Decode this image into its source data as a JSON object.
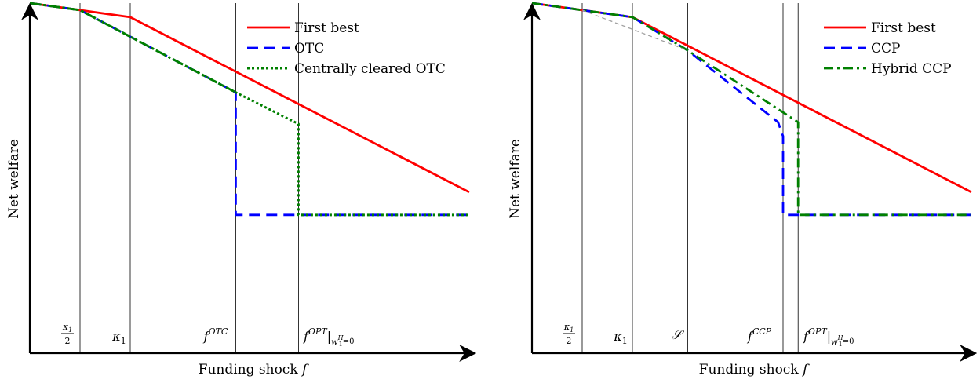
{
  "chart_data": [
    {
      "type": "line",
      "ylabel": "Net welfare",
      "xlabel": "Funding shock f",
      "legend_position": "top-right",
      "grid": false,
      "vlines": [
        {
          "label": "κ1/2",
          "x": 1.0
        },
        {
          "label": "κ1",
          "x": 2.0
        },
        {
          "label": "f^OTC",
          "x": 4.1
        },
        {
          "label": "f^OPT|w1H=0",
          "x": 5.35
        }
      ],
      "xlim": [
        0,
        8.8
      ],
      "ylim": [
        0,
        10
      ],
      "series": [
        {
          "name": "First best",
          "color": "#ff0000",
          "style": "solid",
          "x": [
            0,
            1.0,
            2.0,
            8.75
          ],
          "y": [
            10.0,
            9.8,
            9.6,
            4.6
          ]
        },
        {
          "name": "OTC",
          "color": "#0000ff",
          "style": "dashed",
          "x": [
            0,
            1.0,
            4.1,
            4.1,
            8.75
          ],
          "y": [
            10.0,
            9.8,
            7.45,
            3.95,
            3.95
          ]
        },
        {
          "name": "Centrally cleared OTC",
          "color": "#008000",
          "style": "dotted",
          "x": [
            0,
            1.0,
            4.1,
            5.35,
            5.35,
            8.75
          ],
          "y": [
            10.0,
            9.8,
            7.45,
            6.55,
            3.95,
            3.95
          ]
        },
        {
          "name": "",
          "color": "#008000",
          "style": "dashdot",
          "x": [
            0,
            1.0,
            4.1
          ],
          "y": [
            10.0,
            9.8,
            7.45
          ]
        }
      ]
    },
    {
      "type": "line",
      "ylabel": "Net welfare",
      "xlabel": "Funding shock f",
      "legend_position": "top-right",
      "grid": false,
      "vlines": [
        {
          "label": "κ1/2",
          "x": 1.0
        },
        {
          "label": "κ1",
          "x": 2.0
        },
        {
          "label": "S",
          "x": 3.1
        },
        {
          "label": "f^CCP",
          "x": 5.0
        },
        {
          "label": "f^OPT|w1H=0",
          "x": 5.3
        }
      ],
      "xlim": [
        0,
        8.8
      ],
      "ylim": [
        0,
        10
      ],
      "series": [
        {
          "name": "First best",
          "color": "#ff0000",
          "style": "solid",
          "x": [
            0,
            1.0,
            2.0,
            8.75
          ],
          "y": [
            10.0,
            9.8,
            9.6,
            4.6
          ]
        },
        {
          "name": "CCP",
          "color": "#0000ff",
          "style": "dashed",
          "x": [
            0,
            1.0,
            2.0,
            3.1,
            4.9,
            5.0,
            5.0,
            8.75
          ],
          "y": [
            10.0,
            9.8,
            9.6,
            8.65,
            6.6,
            6.2,
            3.95,
            3.95
          ]
        },
        {
          "name": "Hybrid CCP",
          "color": "#008000",
          "style": "dashdot",
          "x": [
            0,
            1.0,
            2.0,
            3.1,
            5.3,
            5.3,
            8.75
          ],
          "y": [
            10.0,
            9.8,
            9.6,
            8.65,
            6.6,
            3.95,
            3.95
          ]
        },
        {
          "name": "",
          "color": "#a0a0a0",
          "style": "dashed-thin",
          "x": [
            1.0,
            3.1
          ],
          "y": [
            9.8,
            8.65
          ]
        }
      ]
    }
  ],
  "legends": [
    {
      "items": [
        {
          "label": "First best",
          "color": "#ff0000",
          "style": "solid"
        },
        {
          "label": "OTC",
          "color": "#0000ff",
          "style": "dashed"
        },
        {
          "label": "Centrally cleared OTC",
          "color": "#008000",
          "style": "dotted"
        }
      ]
    },
    {
      "items": [
        {
          "label": "First best",
          "color": "#ff0000",
          "style": "solid"
        },
        {
          "label": "CCP",
          "color": "#0000ff",
          "style": "dashed"
        },
        {
          "label": "Hybrid CCP",
          "color": "#008000",
          "style": "dashdot"
        }
      ]
    }
  ]
}
